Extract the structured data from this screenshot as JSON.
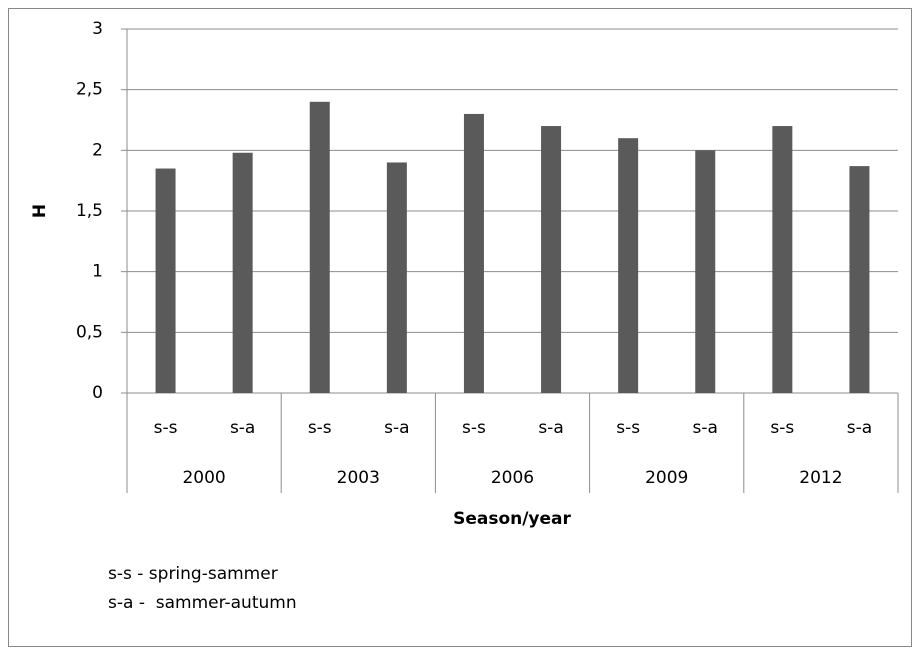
{
  "chart_data": {
    "type": "bar",
    "categories": [
      "s-s",
      "s-a",
      "s-s",
      "s-a",
      "s-s",
      "s-a",
      "s-s",
      "s-a",
      "s-s",
      "s-a"
    ],
    "groups": [
      "2000",
      "2003",
      "2006",
      "2009",
      "2012"
    ],
    "values": [
      1.85,
      1.98,
      2.4,
      1.9,
      2.3,
      2.2,
      2.1,
      2.0,
      2.2,
      1.87
    ],
    "color": "#5a5a5a",
    "ylim": [
      0,
      3
    ],
    "yticks": [
      0,
      {
        "value": 0.5,
        "label": "0,5"
      },
      1,
      {
        "value": 1.5,
        "label": "1,5"
      },
      2,
      {
        "value": 2.5,
        "label": "2,5"
      },
      3
    ],
    "grid": true,
    "y_label": "H",
    "x_label": "Season/year",
    "notes": [
      "s-s - spring-sammer",
      "s-a -  sammer-autumn"
    ]
  }
}
